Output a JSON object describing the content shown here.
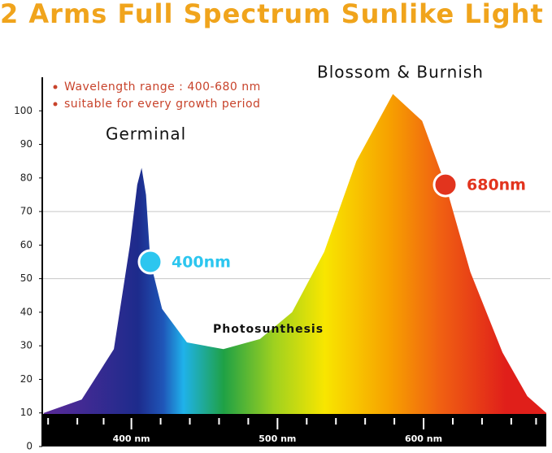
{
  "chart_data": {
    "type": "area",
    "title": "2 Arms Full Spectrum Sunlike Light",
    "annotations": [
      "Germinal",
      "Blossom & Burnish",
      "Photosunthesis"
    ],
    "bullets": [
      "Wavelength range : 400-680 nm",
      "suitable for every growth period"
    ],
    "series": [
      {
        "x": [
          340,
          366,
          388,
          399,
          404,
          407,
          410,
          413,
          421,
          438,
          463,
          488,
          510,
          532,
          554,
          579,
          599,
          615,
          632,
          654,
          671,
          684
        ],
        "values": [
          10,
          14,
          29,
          60,
          78,
          83,
          75,
          55,
          41,
          31,
          29,
          32,
          40,
          58,
          85,
          105,
          97,
          78,
          52,
          28,
          15,
          10
        ]
      }
    ],
    "points": [
      {
        "x": 413,
        "y": 55,
        "label": "400nm",
        "color": "#2cc6ef"
      },
      {
        "x": 615,
        "y": 78,
        "label": "680nm",
        "color": "#e2341e"
      }
    ],
    "xlim": [
      339,
      684
    ],
    "xticks": [
      {
        "value": 400,
        "label": "400 nm"
      },
      {
        "value": 500,
        "label": "500 nm"
      },
      {
        "value": 600,
        "label": "600 nm"
      }
    ],
    "xminor_ticks": [
      343,
      363,
      381,
      420,
      440,
      460,
      480,
      520,
      540,
      560,
      580,
      620,
      640,
      660,
      677
    ],
    "ylim": [
      0,
      110
    ],
    "yticks": [
      0,
      10,
      20,
      30,
      40,
      50,
      60,
      70,
      80,
      90,
      100
    ],
    "grid_lines": [
      50,
      70
    ]
  }
}
